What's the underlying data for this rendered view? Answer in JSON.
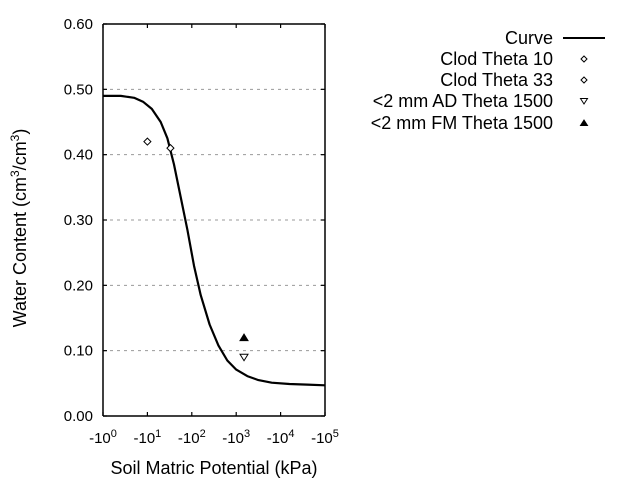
{
  "chart_data": {
    "type": "line",
    "title": "",
    "xlabel": "Soil Matric Potential (kPa)",
    "ylabel": "Water Content (cm3/cm3)",
    "ylabel_parts": {
      "pre": "Water Content (cm",
      "sup1": "3",
      "mid": "/cm",
      "sup2": "3",
      "post": ")"
    },
    "x_scale": "log (negative)",
    "xlim": [
      -1,
      -100000
    ],
    "ylim": [
      0.0,
      0.6
    ],
    "x_ticks": [
      {
        "base": "-10",
        "exp": "0",
        "decade": 0
      },
      {
        "base": "-10",
        "exp": "1",
        "decade": 1
      },
      {
        "base": "-10",
        "exp": "2",
        "decade": 2
      },
      {
        "base": "-10",
        "exp": "3",
        "decade": 3
      },
      {
        "base": "-10",
        "exp": "4",
        "decade": 4
      },
      {
        "base": "-10",
        "exp": "5",
        "decade": 5
      }
    ],
    "y_ticks": [
      "0.00",
      "0.10",
      "0.20",
      "0.30",
      "0.40",
      "0.50",
      "0.60"
    ],
    "grid": {
      "horizontal": true,
      "style": "dotted",
      "color": "#999999"
    },
    "legend_position": "upper right outside",
    "series": [
      {
        "name": "Curve",
        "type": "line",
        "color": "#000000",
        "points_log10_abs_kpa": [
          [
            0,
            0.49
          ],
          [
            0.4,
            0.49
          ],
          [
            0.7,
            0.487
          ],
          [
            0.9,
            0.481
          ],
          [
            1.1,
            0.47
          ],
          [
            1.3,
            0.45
          ],
          [
            1.45,
            0.425
          ],
          [
            1.6,
            0.385
          ],
          [
            1.75,
            0.335
          ],
          [
            1.9,
            0.285
          ],
          [
            2.05,
            0.23
          ],
          [
            2.2,
            0.185
          ],
          [
            2.4,
            0.14
          ],
          [
            2.6,
            0.108
          ],
          [
            2.8,
            0.085
          ],
          [
            3.0,
            0.071
          ],
          [
            3.25,
            0.061
          ],
          [
            3.5,
            0.055
          ],
          [
            3.8,
            0.051
          ],
          [
            4.2,
            0.049
          ],
          [
            4.6,
            0.048
          ],
          [
            5.0,
            0.047
          ]
        ]
      },
      {
        "name": "Clod Theta 10",
        "type": "scatter",
        "marker": "diamond-open",
        "points": [
          {
            "x": -10,
            "y": 0.42
          }
        ]
      },
      {
        "name": "Clod Theta 33",
        "type": "scatter",
        "marker": "diamond-open",
        "points": [
          {
            "x": -33,
            "y": 0.41
          }
        ]
      },
      {
        "name": "<2 mm AD Theta 1500",
        "type": "scatter",
        "marker": "triangle-down-open",
        "points": [
          {
            "x": -1500,
            "y": 0.09
          }
        ]
      },
      {
        "name": "<2 mm FM Theta 1500",
        "type": "scatter",
        "marker": "triangle-up-filled",
        "points": [
          {
            "x": -1500,
            "y": 0.12
          }
        ]
      }
    ]
  },
  "legend": {
    "items": [
      {
        "label": "Curve",
        "symbol": "line"
      },
      {
        "label": "Clod Theta 10",
        "symbol": "diamond-open"
      },
      {
        "label": "Clod Theta 33",
        "symbol": "diamond-open"
      },
      {
        "label": "<2 mm AD Theta 1500",
        "symbol": "triangle-down-open"
      },
      {
        "label": "<2 mm FM Theta 1500",
        "symbol": "triangle-up-filled"
      }
    ]
  }
}
